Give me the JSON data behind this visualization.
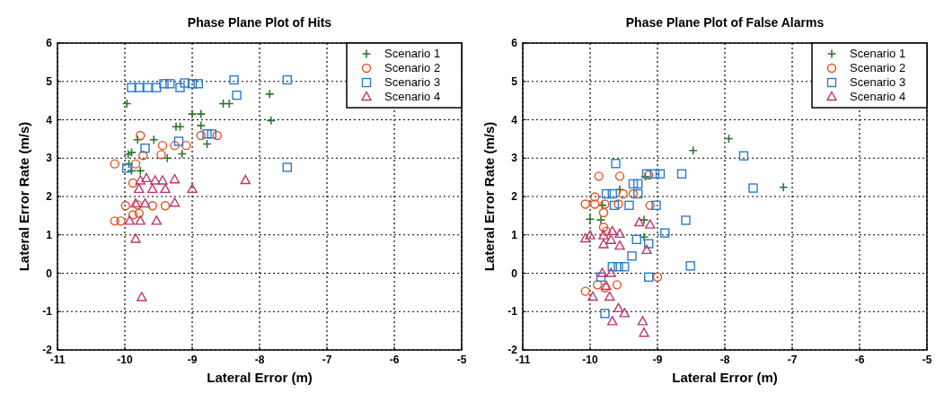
{
  "chart_data": [
    {
      "type": "scatter",
      "title": "Phase Plane Plot of Hits",
      "xlabel": "Lateral Error (m)",
      "ylabel": "Lateral Error Rate (m/s)",
      "xlim": [
        -11,
        -5
      ],
      "ylim": [
        -2,
        6
      ],
      "xticks": [
        -11,
        -10,
        -9,
        -8,
        -7,
        -6,
        -5
      ],
      "yticks": [
        -2,
        -1,
        0,
        1,
        2,
        3,
        4,
        5,
        6
      ],
      "grid": true,
      "legend": "top right",
      "series": [
        {
          "name": "Scenario 1",
          "color": "#2a7a2a",
          "marker": "cross",
          "x": [
            -9.97,
            -9.9,
            -9.81,
            -9.57,
            -9.95,
            -9.94,
            -9.77,
            -9.9,
            -9.24,
            -9.18,
            -9.15,
            -9.37,
            -9.0,
            -8.87,
            -8.87,
            -8.78,
            -8.54,
            -8.45,
            -7.85,
            -7.83
          ],
          "values": [
            4.42,
            3.15,
            3.48,
            3.48,
            3.1,
            2.85,
            2.67,
            2.67,
            3.82,
            3.82,
            3.11,
            3.0,
            4.15,
            4.15,
            3.85,
            3.37,
            4.42,
            4.42,
            4.67,
            3.98
          ]
        },
        {
          "name": "Scenario 2",
          "color": "#e5531f",
          "marker": "circle",
          "x": [
            -10.15,
            -9.77,
            -9.73,
            -9.84,
            -9.44,
            -9.46,
            -9.26,
            -9.09,
            -8.87,
            -8.63,
            -9.88,
            -9.99,
            -9.81,
            -9.59,
            -9.4,
            -9.88,
            -9.79,
            -10.15,
            -10.06
          ],
          "values": [
            2.85,
            3.59,
            3.07,
            2.85,
            3.33,
            3.09,
            3.33,
            3.33,
            3.59,
            3.59,
            2.35,
            1.76,
            1.78,
            1.76,
            1.76,
            1.52,
            1.56,
            1.36,
            1.36
          ]
        },
        {
          "name": "Scenario 3",
          "color": "#2b7bcc",
          "marker": "square",
          "x": [
            -9.9,
            -9.79,
            -9.66,
            -9.53,
            -9.42,
            -9.33,
            -9.18,
            -9.11,
            -9.0,
            -8.91,
            -8.38,
            -8.34,
            -8.78,
            -8.71,
            -9.7,
            -9.2,
            -9.97,
            -7.59,
            -7.59
          ],
          "values": [
            4.84,
            4.84,
            4.84,
            4.84,
            4.94,
            4.94,
            4.84,
            4.96,
            4.94,
            4.94,
            5.04,
            4.64,
            3.63,
            3.63,
            3.26,
            3.44,
            2.74,
            5.04,
            2.76
          ]
        },
        {
          "name": "Scenario 4",
          "color": "#c2336e",
          "marker": "triangle",
          "x": [
            -9.84,
            -9.75,
            -9.68,
            -9.55,
            -9.44,
            -9.77,
            -9.79,
            -9.59,
            -9.4,
            -9.26,
            -9.0,
            -9.26,
            -9.93,
            -9.77,
            -9.53,
            -9.84,
            -9.7,
            -8.21
          ],
          "values": [
            0.89,
            -0.63,
            2.47,
            2.41,
            2.41,
            2.41,
            2.19,
            2.19,
            2.19,
            2.44,
            2.19,
            1.83,
            1.36,
            1.36,
            1.36,
            1.81,
            1.81,
            2.42
          ]
        }
      ]
    },
    {
      "type": "scatter",
      "title": "Phase Plane Plot of False Alarms",
      "xlabel": "Lateral Error (m)",
      "ylabel": "Lateral Error Rate (m/s)",
      "xlim": [
        -11,
        -5
      ],
      "ylim": [
        -2,
        6
      ],
      "xticks": [
        -11,
        -10,
        -9,
        -8,
        -7,
        -6,
        -5
      ],
      "yticks": [
        -2,
        -1,
        0,
        1,
        2,
        3,
        4,
        5,
        6
      ],
      "grid": true,
      "legend": "top right",
      "series": [
        {
          "name": "Scenario 1",
          "color": "#2a7a2a",
          "marker": "cross",
          "x": [
            -10.0,
            -9.84,
            -8.47,
            -9.18,
            -9.56,
            -9.2,
            -9.2,
            -9.82,
            -7.94,
            -7.13
          ],
          "values": [
            1.41,
            1.39,
            3.2,
            2.52,
            2.18,
            1.39,
            0.94,
            1.77,
            3.51,
            2.24
          ]
        },
        {
          "name": "Scenario 2",
          "color": "#e5531f",
          "marker": "circle",
          "x": [
            -9.87,
            -9.56,
            -9.93,
            -10.07,
            -9.93,
            -9.8,
            -9.78,
            -9.51,
            -9.36,
            -9.13,
            -9.11,
            -9.8,
            -9.76,
            -10.07,
            -9.89,
            -9.78,
            -9.6,
            -9.0,
            -9.58
          ],
          "values": [
            2.53,
            2.53,
            1.99,
            1.8,
            1.8,
            1.58,
            1.8,
            2.07,
            2.07,
            2.56,
            1.77,
            1.2,
            1.09,
            -0.47,
            -0.3,
            -0.38,
            -0.3,
            -0.1,
            1.8
          ]
        },
        {
          "name": "Scenario 3",
          "color": "#2b7bcc",
          "marker": "square",
          "x": [
            -9.62,
            -9.36,
            -9.29,
            -9.29,
            -9.76,
            -9.67,
            -9.42,
            -9.64,
            -9.16,
            -9.04,
            -8.96,
            -8.64,
            -9.02,
            -8.58,
            -8.89,
            -9.31,
            -9.13,
            -9.38,
            -9.67,
            -9.58,
            -9.49,
            -9.84,
            -9.13,
            -8.51,
            -9.78,
            -7.72,
            -7.58
          ],
          "values": [
            2.86,
            2.33,
            2.33,
            2.07,
            2.07,
            2.07,
            1.77,
            1.77,
            2.59,
            2.59,
            2.59,
            2.59,
            1.77,
            1.38,
            1.05,
            0.88,
            0.77,
            0.45,
            0.17,
            0.17,
            0.17,
            -0.1,
            -0.1,
            0.19,
            -1.05,
            3.06,
            2.22
          ]
        },
        {
          "name": "Scenario 4",
          "color": "#c2336e",
          "marker": "triangle",
          "x": [
            -10.07,
            -10.0,
            -9.8,
            -9.67,
            -9.56,
            -9.69,
            -9.8,
            -9.56,
            -9.27,
            -9.11,
            -9.16,
            -9.96,
            -9.71,
            -9.82,
            -9.69,
            -9.76,
            -9.58,
            -9.49,
            -9.67,
            -9.22,
            -9.2
          ],
          "values": [
            0.9,
            0.98,
            0.98,
            1.09,
            1.02,
            0.86,
            0.75,
            0.71,
            1.32,
            1.26,
            0.6,
            -0.62,
            -0.62,
            0,
            0,
            -0.34,
            -0.92,
            -1.05,
            -1.26,
            -1.26,
            -1.56
          ]
        }
      ]
    }
  ]
}
